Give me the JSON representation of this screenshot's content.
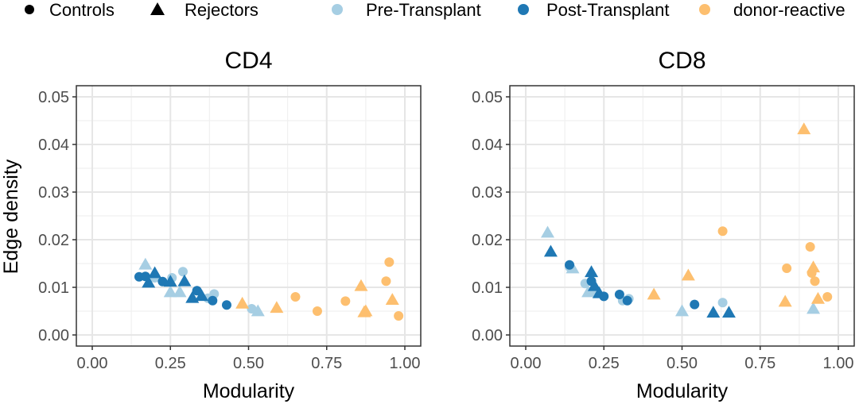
{
  "legend": {
    "shape_items": [
      {
        "label": "Controls",
        "shape": "circle"
      },
      {
        "label": "Rejectors",
        "shape": "triangle"
      }
    ],
    "color_items": [
      {
        "label": "Pre-Transplant",
        "color": "#a6cee3"
      },
      {
        "label": "Post-Transplant",
        "color": "#1f78b4"
      },
      {
        "label": "donor-reactive",
        "color": "#fdbf6f"
      }
    ]
  },
  "chart_data": [
    {
      "type": "scatter",
      "title": "CD4",
      "xlabel": "Modularity",
      "ylabel": "Edge density",
      "xlim": [
        0,
        1
      ],
      "ylim": [
        0,
        0.05
      ],
      "xticks": [
        "0.00",
        "0.25",
        "0.50",
        "0.75",
        "1.00"
      ],
      "yticks": [
        "0.00",
        "0.01",
        "0.02",
        "0.03",
        "0.04",
        "0.05"
      ],
      "series": [
        {
          "name": "Pre-Transplant",
          "color": "#a6cee3",
          "points": [
            {
              "x": 0.17,
              "y": 0.0148,
              "shape": "triangle"
            },
            {
              "x": 0.2,
              "y": 0.012,
              "shape": "circle"
            },
            {
              "x": 0.255,
              "y": 0.012,
              "shape": "circle"
            },
            {
              "x": 0.29,
              "y": 0.0133,
              "shape": "circle"
            },
            {
              "x": 0.25,
              "y": 0.009,
              "shape": "triangle"
            },
            {
              "x": 0.28,
              "y": 0.009,
              "shape": "triangle"
            },
            {
              "x": 0.37,
              "y": 0.0077,
              "shape": "circle"
            },
            {
              "x": 0.39,
              "y": 0.0086,
              "shape": "circle"
            },
            {
              "x": 0.51,
              "y": 0.0055,
              "shape": "circle"
            },
            {
              "x": 0.53,
              "y": 0.005,
              "shape": "triangle"
            }
          ]
        },
        {
          "name": "Post-Transplant",
          "color": "#1f78b4",
          "points": [
            {
              "x": 0.15,
              "y": 0.0122,
              "shape": "circle"
            },
            {
              "x": 0.17,
              "y": 0.0123,
              "shape": "circle"
            },
            {
              "x": 0.18,
              "y": 0.011,
              "shape": "triangle"
            },
            {
              "x": 0.2,
              "y": 0.013,
              "shape": "triangle"
            },
            {
              "x": 0.225,
              "y": 0.0112,
              "shape": "circle"
            },
            {
              "x": 0.25,
              "y": 0.0112,
              "shape": "triangle"
            },
            {
              "x": 0.295,
              "y": 0.0113,
              "shape": "triangle"
            },
            {
              "x": 0.32,
              "y": 0.0078,
              "shape": "triangle"
            },
            {
              "x": 0.335,
              "y": 0.0093,
              "shape": "circle"
            },
            {
              "x": 0.35,
              "y": 0.0082,
              "shape": "triangle"
            },
            {
              "x": 0.385,
              "y": 0.0072,
              "shape": "circle"
            },
            {
              "x": 0.43,
              "y": 0.0063,
              "shape": "circle"
            }
          ]
        },
        {
          "name": "donor-reactive",
          "color": "#fdbf6f",
          "points": [
            {
              "x": 0.48,
              "y": 0.0066,
              "shape": "triangle"
            },
            {
              "x": 0.59,
              "y": 0.0057,
              "shape": "triangle"
            },
            {
              "x": 0.65,
              "y": 0.008,
              "shape": "circle"
            },
            {
              "x": 0.72,
              "y": 0.005,
              "shape": "circle"
            },
            {
              "x": 0.81,
              "y": 0.0071,
              "shape": "circle"
            },
            {
              "x": 0.86,
              "y": 0.0103,
              "shape": "triangle"
            },
            {
              "x": 0.87,
              "y": 0.0048,
              "shape": "triangle"
            },
            {
              "x": 0.875,
              "y": 0.005,
              "shape": "triangle"
            },
            {
              "x": 0.94,
              "y": 0.0113,
              "shape": "circle"
            },
            {
              "x": 0.95,
              "y": 0.0153,
              "shape": "circle"
            },
            {
              "x": 0.96,
              "y": 0.0074,
              "shape": "triangle"
            },
            {
              "x": 0.98,
              "y": 0.004,
              "shape": "circle"
            }
          ]
        }
      ]
    },
    {
      "type": "scatter",
      "title": "CD8",
      "xlabel": "Modularity",
      "ylabel": "Edge density",
      "xlim": [
        0,
        1
      ],
      "ylim": [
        0,
        0.05
      ],
      "xticks": [
        "0.00",
        "0.25",
        "0.50",
        "0.75",
        "1.00"
      ],
      "yticks": [
        "0.00",
        "0.01",
        "0.02",
        "0.03",
        "0.04",
        "0.05"
      ],
      "series": [
        {
          "name": "Pre-Transplant",
          "color": "#a6cee3",
          "points": [
            {
              "x": 0.07,
              "y": 0.0215,
              "shape": "triangle"
            },
            {
              "x": 0.14,
              "y": 0.0143,
              "shape": "circle"
            },
            {
              "x": 0.15,
              "y": 0.014,
              "shape": "triangle"
            },
            {
              "x": 0.19,
              "y": 0.0108,
              "shape": "circle"
            },
            {
              "x": 0.2,
              "y": 0.009,
              "shape": "triangle"
            },
            {
              "x": 0.22,
              "y": 0.0092,
              "shape": "triangle"
            },
            {
              "x": 0.31,
              "y": 0.0072,
              "shape": "circle"
            },
            {
              "x": 0.33,
              "y": 0.0076,
              "shape": "circle"
            },
            {
              "x": 0.5,
              "y": 0.005,
              "shape": "triangle"
            },
            {
              "x": 0.63,
              "y": 0.0068,
              "shape": "circle"
            },
            {
              "x": 0.92,
              "y": 0.0055,
              "shape": "triangle"
            }
          ]
        },
        {
          "name": "Post-Transplant",
          "color": "#1f78b4",
          "points": [
            {
              "x": 0.08,
              "y": 0.0175,
              "shape": "triangle"
            },
            {
              "x": 0.14,
              "y": 0.0147,
              "shape": "circle"
            },
            {
              "x": 0.21,
              "y": 0.0132,
              "shape": "triangle"
            },
            {
              "x": 0.21,
              "y": 0.0113,
              "shape": "circle"
            },
            {
              "x": 0.22,
              "y": 0.0103,
              "shape": "triangle"
            },
            {
              "x": 0.235,
              "y": 0.0088,
              "shape": "triangle"
            },
            {
              "x": 0.25,
              "y": 0.0081,
              "shape": "circle"
            },
            {
              "x": 0.3,
              "y": 0.0085,
              "shape": "circle"
            },
            {
              "x": 0.325,
              "y": 0.0072,
              "shape": "circle"
            },
            {
              "x": 0.54,
              "y": 0.0064,
              "shape": "circle"
            },
            {
              "x": 0.6,
              "y": 0.0047,
              "shape": "triangle"
            },
            {
              "x": 0.65,
              "y": 0.0047,
              "shape": "triangle"
            }
          ]
        },
        {
          "name": "donor-reactive",
          "color": "#fdbf6f",
          "points": [
            {
              "x": 0.41,
              "y": 0.0085,
              "shape": "triangle"
            },
            {
              "x": 0.52,
              "y": 0.0125,
              "shape": "triangle"
            },
            {
              "x": 0.63,
              "y": 0.0218,
              "shape": "circle"
            },
            {
              "x": 0.83,
              "y": 0.007,
              "shape": "triangle"
            },
            {
              "x": 0.835,
              "y": 0.014,
              "shape": "circle"
            },
            {
              "x": 0.89,
              "y": 0.0432,
              "shape": "triangle"
            },
            {
              "x": 0.91,
              "y": 0.0185,
              "shape": "circle"
            },
            {
              "x": 0.915,
              "y": 0.013,
              "shape": "circle"
            },
            {
              "x": 0.92,
              "y": 0.0142,
              "shape": "triangle"
            },
            {
              "x": 0.925,
              "y": 0.0113,
              "shape": "circle"
            },
            {
              "x": 0.935,
              "y": 0.0076,
              "shape": "triangle"
            },
            {
              "x": 0.965,
              "y": 0.008,
              "shape": "circle"
            }
          ]
        }
      ]
    }
  ]
}
